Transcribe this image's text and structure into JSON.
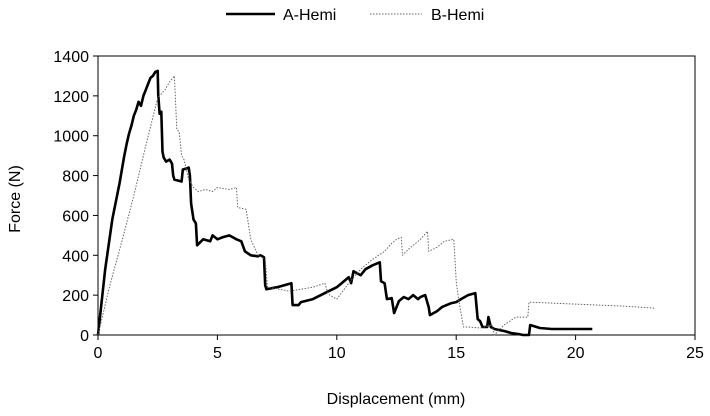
{
  "chart_data": {
    "type": "line",
    "title": "",
    "xlabel": "Displacement (mm)",
    "ylabel": "Force (N)",
    "xlim": [
      0,
      25
    ],
    "ylim": [
      0,
      1400
    ],
    "xticks": [
      0,
      5,
      10,
      15,
      20,
      25
    ],
    "yticks": [
      0,
      200,
      400,
      600,
      800,
      1000,
      1200,
      1400
    ],
    "grid": false,
    "legend": "top-center",
    "series": [
      {
        "name": "A-Hemi",
        "style": "solid-thick",
        "color": "#000000",
        "points": [
          [
            0,
            0
          ],
          [
            0.3,
            330
          ],
          [
            0.6,
            580
          ],
          [
            0.9,
            760
          ],
          [
            1.1,
            900
          ],
          [
            1.2,
            960
          ],
          [
            1.3,
            1010
          ],
          [
            1.4,
            1050
          ],
          [
            1.5,
            1100
          ],
          [
            1.6,
            1130
          ],
          [
            1.7,
            1170
          ],
          [
            1.8,
            1150
          ],
          [
            1.9,
            1200
          ],
          [
            2.0,
            1230
          ],
          [
            2.1,
            1260
          ],
          [
            2.2,
            1290
          ],
          [
            2.3,
            1300
          ],
          [
            2.4,
            1320
          ],
          [
            2.5,
            1325
          ],
          [
            2.52,
            1210
          ],
          [
            2.58,
            1110
          ],
          [
            2.65,
            1120
          ],
          [
            2.7,
            920
          ],
          [
            2.75,
            890
          ],
          [
            2.85,
            870
          ],
          [
            3.0,
            880
          ],
          [
            3.1,
            860
          ],
          [
            3.15,
            800
          ],
          [
            3.2,
            780
          ],
          [
            3.5,
            770
          ],
          [
            3.55,
            830
          ],
          [
            3.8,
            840
          ],
          [
            3.85,
            800
          ],
          [
            3.9,
            660
          ],
          [
            4.0,
            580
          ],
          [
            4.1,
            560
          ],
          [
            4.15,
            450
          ],
          [
            4.4,
            480
          ],
          [
            4.7,
            470
          ],
          [
            4.8,
            500
          ],
          [
            5.0,
            480
          ],
          [
            5.2,
            490
          ],
          [
            5.5,
            500
          ],
          [
            5.8,
            480
          ],
          [
            6.0,
            470
          ],
          [
            6.15,
            420
          ],
          [
            6.4,
            400
          ],
          [
            6.7,
            395
          ],
          [
            6.8,
            400
          ],
          [
            6.95,
            390
          ],
          [
            7.0,
            250
          ],
          [
            7.05,
            230
          ],
          [
            7.5,
            240
          ],
          [
            7.8,
            250
          ],
          [
            8.1,
            260
          ],
          [
            8.15,
            150
          ],
          [
            8.4,
            150
          ],
          [
            8.5,
            165
          ],
          [
            9.0,
            180
          ],
          [
            9.5,
            210
          ],
          [
            10.0,
            240
          ],
          [
            10.5,
            290
          ],
          [
            10.6,
            260
          ],
          [
            10.7,
            320
          ],
          [
            11.0,
            300
          ],
          [
            11.2,
            330
          ],
          [
            11.5,
            350
          ],
          [
            11.8,
            365
          ],
          [
            11.85,
            270
          ],
          [
            12.0,
            260
          ],
          [
            12.1,
            180
          ],
          [
            12.3,
            185
          ],
          [
            12.4,
            110
          ],
          [
            12.6,
            170
          ],
          [
            12.8,
            190
          ],
          [
            13.0,
            180
          ],
          [
            13.2,
            200
          ],
          [
            13.4,
            180
          ],
          [
            13.5,
            190
          ],
          [
            13.7,
            200
          ],
          [
            13.85,
            140
          ],
          [
            13.9,
            100
          ],
          [
            14.2,
            120
          ],
          [
            14.4,
            140
          ],
          [
            14.6,
            150
          ],
          [
            14.8,
            160
          ],
          [
            15.0,
            165
          ],
          [
            15.2,
            180
          ],
          [
            15.5,
            200
          ],
          [
            15.8,
            210
          ],
          [
            15.9,
            80
          ],
          [
            16.0,
            70
          ],
          [
            16.1,
            40
          ],
          [
            16.3,
            40
          ],
          [
            16.35,
            90
          ],
          [
            16.45,
            40
          ],
          [
            16.6,
            30
          ],
          [
            17.0,
            20
          ],
          [
            17.3,
            10
          ],
          [
            17.6,
            5
          ],
          [
            17.8,
            0
          ],
          [
            18.05,
            0
          ],
          [
            18.1,
            50
          ],
          [
            18.5,
            35
          ],
          [
            19.0,
            30
          ],
          [
            20.0,
            30
          ],
          [
            20.7,
            30
          ]
        ]
      },
      {
        "name": "B-Hemi",
        "style": "dotted-thin",
        "color": "#666666",
        "points": [
          [
            0,
            0
          ],
          [
            0.5,
            250
          ],
          [
            1.0,
            470
          ],
          [
            1.5,
            700
          ],
          [
            2.0,
            950
          ],
          [
            2.5,
            1190
          ],
          [
            2.8,
            1230
          ],
          [
            3.0,
            1270
          ],
          [
            3.2,
            1300
          ],
          [
            3.3,
            1030
          ],
          [
            3.4,
            1020
          ],
          [
            3.5,
            900
          ],
          [
            3.6,
            880
          ],
          [
            3.8,
            780
          ],
          [
            4.0,
            740
          ],
          [
            4.2,
            720
          ],
          [
            4.5,
            730
          ],
          [
            4.8,
            720
          ],
          [
            5.0,
            740
          ],
          [
            5.5,
            730
          ],
          [
            5.8,
            740
          ],
          [
            5.85,
            640
          ],
          [
            6.2,
            630
          ],
          [
            6.4,
            480
          ],
          [
            6.7,
            400
          ],
          [
            7.0,
            380
          ],
          [
            7.1,
            240
          ],
          [
            7.6,
            230
          ],
          [
            8.0,
            220
          ],
          [
            8.5,
            230
          ],
          [
            9.0,
            240
          ],
          [
            9.5,
            260
          ],
          [
            9.6,
            220
          ],
          [
            9.7,
            200
          ],
          [
            10.0,
            180
          ],
          [
            10.5,
            260
          ],
          [
            11.0,
            330
          ],
          [
            11.5,
            380
          ],
          [
            12.0,
            420
          ],
          [
            12.3,
            460
          ],
          [
            12.5,
            480
          ],
          [
            12.7,
            490
          ],
          [
            12.75,
            400
          ],
          [
            13.0,
            430
          ],
          [
            13.5,
            480
          ],
          [
            13.8,
            520
          ],
          [
            13.85,
            420
          ],
          [
            14.2,
            440
          ],
          [
            14.5,
            470
          ],
          [
            14.9,
            480
          ],
          [
            15.0,
            270
          ],
          [
            15.1,
            180
          ],
          [
            15.3,
            40
          ],
          [
            15.5,
            40
          ],
          [
            16.0,
            35
          ],
          [
            16.5,
            50
          ],
          [
            16.6,
            0
          ],
          [
            17.0,
            50
          ],
          [
            17.5,
            90
          ],
          [
            18.0,
            90
          ],
          [
            18.05,
            165
          ],
          [
            19.0,
            160
          ],
          [
            20.0,
            155
          ],
          [
            21.0,
            150
          ],
          [
            22.0,
            145
          ],
          [
            23.3,
            135
          ]
        ]
      }
    ]
  }
}
